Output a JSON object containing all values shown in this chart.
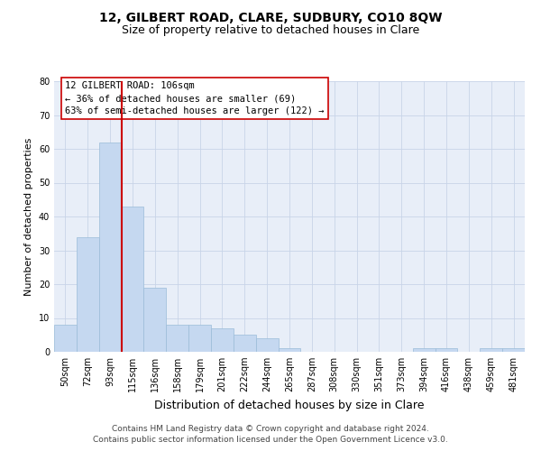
{
  "title": "12, GILBERT ROAD, CLARE, SUDBURY, CO10 8QW",
  "subtitle": "Size of property relative to detached houses in Clare",
  "xlabel": "Distribution of detached houses by size in Clare",
  "ylabel": "Number of detached properties",
  "categories": [
    "50sqm",
    "72sqm",
    "93sqm",
    "115sqm",
    "136sqm",
    "158sqm",
    "179sqm",
    "201sqm",
    "222sqm",
    "244sqm",
    "265sqm",
    "287sqm",
    "308sqm",
    "330sqm",
    "351sqm",
    "373sqm",
    "394sqm",
    "416sqm",
    "438sqm",
    "459sqm",
    "481sqm"
  ],
  "values": [
    8,
    34,
    62,
    43,
    19,
    8,
    8,
    7,
    5,
    4,
    1,
    0,
    0,
    0,
    0,
    0,
    1,
    1,
    0,
    1,
    1
  ],
  "bar_color": "#c5d8f0",
  "bar_edge_color": "#9bbcd8",
  "vline_x_index": 3,
  "vline_color": "#cc0000",
  "annotation_text": "12 GILBERT ROAD: 106sqm\n← 36% of detached houses are smaller (69)\n63% of semi-detached houses are larger (122) →",
  "annotation_box_color": "#ffffff",
  "annotation_box_edge": "#cc0000",
  "annotation_fontsize": 7.5,
  "title_fontsize": 10,
  "subtitle_fontsize": 9,
  "xlabel_fontsize": 9,
  "ylabel_fontsize": 8,
  "tick_fontsize": 7,
  "ylim": [
    0,
    80
  ],
  "yticks": [
    0,
    10,
    20,
    30,
    40,
    50,
    60,
    70,
    80
  ],
  "grid_color": "#c8d4e8",
  "bg_color": "#e8eef8",
  "footer_line1": "Contains HM Land Registry data © Crown copyright and database right 2024.",
  "footer_line2": "Contains public sector information licensed under the Open Government Licence v3.0.",
  "footer_fontsize": 6.5
}
